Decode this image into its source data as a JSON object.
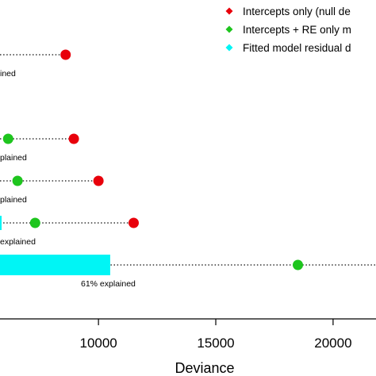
{
  "chart_data": {
    "type": "scatter",
    "title": "",
    "xlabel": "Deviance",
    "ylabel": "",
    "xlim": [
      5600,
      22100
    ],
    "xticks": [
      {
        "value": 5000,
        "label": "5000"
      },
      {
        "value": 10000,
        "label": "10000"
      },
      {
        "value": 15000,
        "label": "15000"
      },
      {
        "value": 20000,
        "label": "20000"
      }
    ],
    "grid": false,
    "legend_position": "top-right",
    "colors": {
      "null": "#e8000b",
      "re": "#1ec51e",
      "residual": "#00f5f5"
    },
    "legend": [
      {
        "key": "null",
        "label": "Intercepts only (null de"
      },
      {
        "key": "re",
        "label": "Intercepts + RE only m"
      },
      {
        "key": "residual",
        "label": "Fitted model residual d"
      }
    ],
    "rows": [
      {
        "null": 8600,
        "re": null,
        "residual": null,
        "annotation": "ined"
      },
      {
        "null": 8950,
        "re": 6150,
        "residual": null,
        "annotation": "plained"
      },
      {
        "null": 10000,
        "re": 6550,
        "residual": null,
        "annotation": "plained"
      },
      {
        "null": 11500,
        "re": 7300,
        "residual": 5600,
        "annotation": "explained"
      },
      {
        "null": null,
        "re": 18500,
        "residual": 10500,
        "annotation": "61% explained"
      }
    ]
  }
}
